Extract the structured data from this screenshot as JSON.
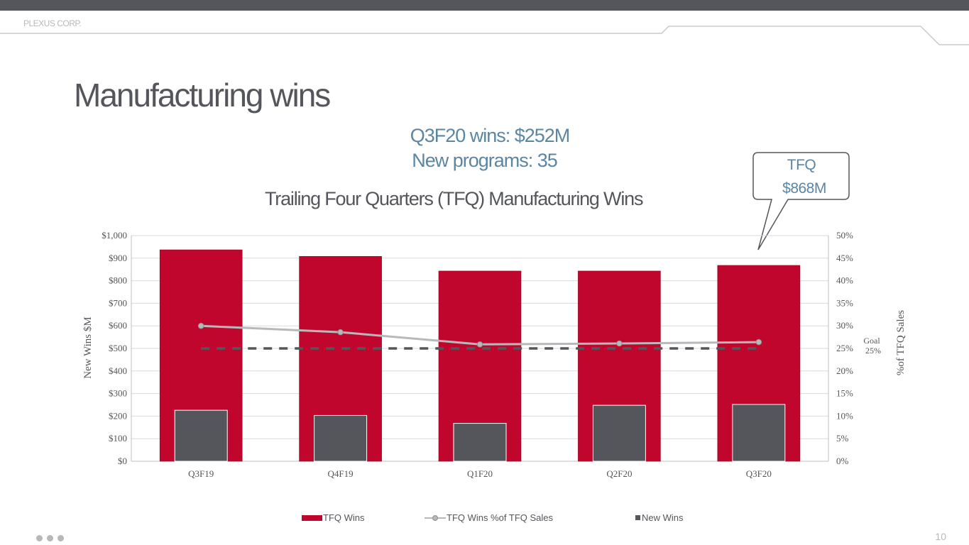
{
  "header": {
    "brand": "PLEXUS CORP."
  },
  "slide": {
    "title": "Manufacturing wins",
    "headline_1": "Q3F20 wins:   $252M",
    "headline_2": "New programs:   35",
    "callout_line_1": "TFQ",
    "callout_line_2": "$868M",
    "page_number": "10"
  },
  "colors": {
    "tfq_wins": "#c0062d",
    "new_wins": "#54565b",
    "line": "#b7b8ba",
    "goal": "#54565b",
    "accent_text": "#5b86a3"
  },
  "chart_data": {
    "type": "bar",
    "title": "Trailing Four Quarters (TFQ) Manufacturing Wins",
    "categories": [
      "Q3F19",
      "Q4F19",
      "Q1F20",
      "Q2F20",
      "Q3F20"
    ],
    "series": [
      {
        "name": "TFQ Wins",
        "kind": "bar",
        "axis": "left",
        "values": [
          937,
          908,
          843,
          843,
          868
        ]
      },
      {
        "name": "New Wins",
        "kind": "bar",
        "axis": "left",
        "values": [
          226,
          203,
          168,
          248,
          252
        ]
      },
      {
        "name": "TFQ Wins %of TFQ Sales",
        "kind": "line",
        "axis": "right",
        "values": [
          30.0,
          28.6,
          25.9,
          26.1,
          26.4
        ]
      }
    ],
    "goal": {
      "label_1": "Goal",
      "label_2": "25%",
      "value": 25
    },
    "ylabel": "New Wins $M",
    "y2label": "%of TFQ Sales",
    "ylim": [
      0,
      1000
    ],
    "y2lim": [
      0,
      50
    ],
    "yticks": [
      "$0",
      "$100",
      "$200",
      "$300",
      "$400",
      "$500",
      "$600",
      "$700",
      "$800",
      "$900",
      "$1,000"
    ],
    "y2ticks": [
      "0%",
      "5%",
      "10%",
      "15%",
      "20%",
      "25%",
      "30%",
      "35%",
      "40%",
      "45%",
      "50%"
    ],
    "grid": true,
    "legend_position": "bottom"
  }
}
